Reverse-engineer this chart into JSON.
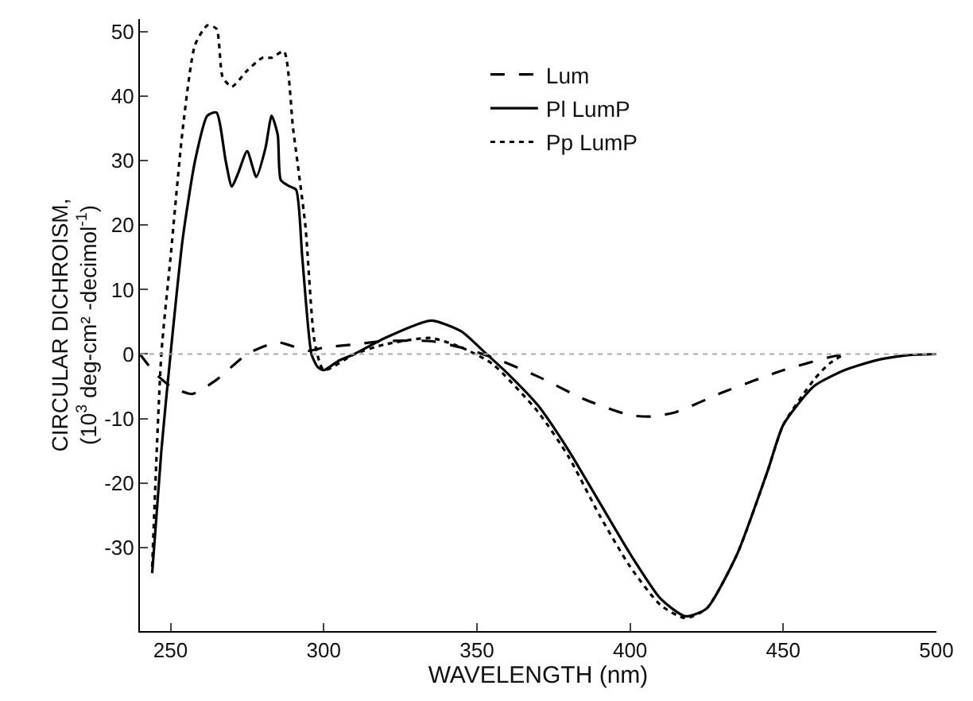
{
  "chart_data": {
    "type": "line",
    "xlabel": "WAVELENGTH (nm)",
    "ylabel": "CIRCULAR DICHROISM,\n(10$^{3}$ deg-cm² -decimol$^{-1}$)",
    "xlim": [
      240,
      500
    ],
    "xticks": [
      250,
      300,
      350,
      400,
      450,
      500
    ],
    "ylim": [
      -43,
      52
    ],
    "yticks": [
      -30,
      -20,
      -10,
      0,
      10,
      20,
      30,
      40,
      50
    ],
    "grid": false,
    "legend": "top right",
    "marker": "none",
    "ref_lines": [
      {
        "axis": "y",
        "value": 0,
        "color": "#aaaaaa",
        "line_style": "dotted"
      }
    ],
    "series": [
      {
        "name": "Lum",
        "color": "#000000",
        "line_style": "dashed",
        "x": [
          240,
          245,
          250,
          257,
          265,
          275,
          285,
          295,
          300,
          310,
          320,
          335,
          345,
          355,
          370,
          385,
          400,
          407,
          415,
          430,
          450,
          465,
          470
        ],
        "values": [
          0,
          -3,
          -5,
          -6.2,
          -4,
          0,
          1.8,
          0.5,
          1,
          1.5,
          2,
          2,
          1,
          -0.5,
          -3.5,
          -7,
          -9.5,
          -9.7,
          -9,
          -6,
          -2.5,
          -0.5,
          0
        ]
      },
      {
        "name": "Pl LumP",
        "color": "#000000",
        "line_style": "solid",
        "x": [
          244,
          247,
          250,
          254,
          258,
          262,
          265,
          268,
          270,
          272,
          275,
          278,
          281,
          283,
          285,
          286,
          289,
          291,
          293,
          296,
          298,
          300,
          305,
          310,
          320,
          335,
          345,
          352,
          360,
          370,
          380,
          390,
          400,
          410,
          418,
          425,
          435,
          445,
          450,
          460,
          470,
          480,
          490,
          500
        ],
        "values": [
          -34,
          -15,
          0,
          18,
          30,
          37,
          37.5,
          30,
          26,
          28,
          31.5,
          27.5,
          32,
          37,
          34,
          27,
          26,
          25.5,
          15,
          0,
          -2,
          -2.5,
          -1,
          0,
          2.5,
          5.2,
          3.5,
          0.5,
          -3,
          -8,
          -15,
          -23,
          -31,
          -38,
          -40.7,
          -39.5,
          -31,
          -18,
          -11,
          -5,
          -2.5,
          -1,
          -0.2,
          0
        ]
      },
      {
        "name": "Pp LumP",
        "color": "#000000",
        "line_style": "dotted",
        "x": [
          244,
          247,
          250,
          254,
          258,
          262,
          265,
          267,
          270,
          275,
          280,
          283,
          287,
          290,
          294,
          297,
          300,
          310,
          320,
          335,
          345,
          355,
          370,
          380,
          390,
          400,
          410,
          418,
          425,
          435,
          445,
          450,
          460,
          465,
          470
        ],
        "values": [
          -33,
          0,
          15,
          35,
          48,
          51,
          50.5,
          43,
          41.5,
          44,
          46,
          46,
          47,
          35,
          20,
          2,
          -2.5,
          0,
          1.5,
          2.5,
          1,
          -1.5,
          -9,
          -16,
          -25,
          -33,
          -39,
          -41,
          -39.5,
          -31,
          -18,
          -11,
          -4,
          -1.5,
          0
        ]
      }
    ]
  }
}
